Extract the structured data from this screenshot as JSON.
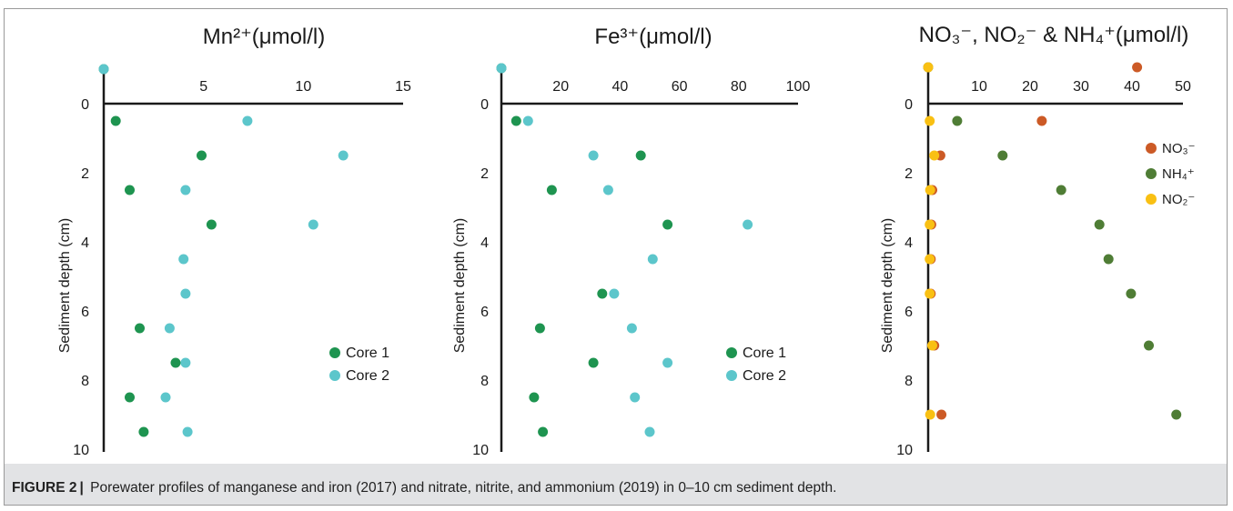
{
  "caption": {
    "label": "FIGURE 2",
    "separator": "|",
    "text": "Porewater profiles of manganese and iron (2017) and nitrate, nitrite, and ammonium (2019) in 0–10 cm sediment depth."
  },
  "chart_data": [
    {
      "type": "scatter",
      "title": "Mn²⁺(μmol/l)",
      "xlabel": "",
      "ylabel": "Sediment depth (cm)",
      "xlim": [
        0,
        15
      ],
      "ylim": [
        0,
        10
      ],
      "y_inverted": true,
      "x_ticks": [
        5,
        10,
        15
      ],
      "y_ticks": [
        0,
        2,
        4,
        6,
        8,
        10
      ],
      "legend_position": "lower-right",
      "grid": false,
      "series": [
        {
          "name": "Core 1",
          "color": "#1e9450",
          "x": [
            0.6,
            4.9,
            1.3,
            5.4,
            1.8,
            3.6,
            1.3,
            2.0
          ],
          "y": [
            0.5,
            1.5,
            2.5,
            3.5,
            6.5,
            7.5,
            8.5,
            9.5
          ]
        },
        {
          "name": "Core 2",
          "color": "#5cc6cb",
          "x": [
            7.2,
            12.0,
            4.1,
            10.5,
            4.0,
            4.1,
            3.3,
            4.1,
            3.1,
            4.2
          ],
          "y": [
            0.5,
            1.5,
            2.5,
            3.5,
            4.5,
            5.5,
            6.5,
            7.5,
            8.5,
            9.5
          ]
        }
      ]
    },
    {
      "type": "scatter",
      "title": "Fe³⁺(μmol/l)",
      "xlabel": "",
      "ylabel": "Sediment depth (cm)",
      "xlim": [
        0,
        100
      ],
      "ylim": [
        0,
        10
      ],
      "y_inverted": true,
      "x_ticks": [
        20,
        40,
        60,
        80,
        100
      ],
      "y_ticks": [
        0,
        2,
        4,
        6,
        8,
        10
      ],
      "legend_position": "lower-right",
      "grid": false,
      "series": [
        {
          "name": "Core 1",
          "color": "#1e9450",
          "x": [
            5,
            47,
            17,
            56,
            34,
            13,
            31,
            11,
            14
          ],
          "y": [
            0.5,
            1.5,
            2.5,
            3.5,
            5.5,
            6.5,
            7.5,
            8.5,
            9.5
          ]
        },
        {
          "name": "Core 2",
          "color": "#5cc6cb",
          "x": [
            9,
            31,
            36,
            83,
            51,
            38,
            44,
            56,
            45,
            50
          ],
          "y": [
            0.5,
            1.5,
            2.5,
            3.5,
            4.5,
            5.5,
            6.5,
            7.5,
            8.5,
            9.5
          ]
        }
      ]
    },
    {
      "type": "scatter",
      "title": "NO₃⁻, NO₂⁻ & NH₄⁺(μmol/l)",
      "xlabel": "",
      "ylabel": "Sediment depth (cm)",
      "xlim": [
        0,
        50
      ],
      "ylim": [
        0,
        10
      ],
      "y_inverted": true,
      "x_ticks": [
        10,
        20,
        30,
        40,
        50
      ],
      "y_ticks": [
        0,
        2,
        4,
        6,
        8,
        10
      ],
      "legend_position": "upper-right",
      "grid": false,
      "series": [
        {
          "name": "NO₃⁻",
          "color": "#cc5a26",
          "x": [
            22.3,
            2.4,
            0.8,
            0.6,
            0.5,
            0.5,
            1.2,
            2.6
          ],
          "y": [
            0.5,
            1.5,
            2.5,
            3.5,
            4.5,
            5.5,
            7.0,
            9.0
          ]
        },
        {
          "name": "NH₄⁺",
          "color": "#4f7d35",
          "x": [
            5.7,
            14.6,
            26.1,
            33.6,
            35.4,
            39.8,
            43.3,
            48.7
          ],
          "y": [
            0.5,
            1.5,
            2.5,
            3.5,
            4.5,
            5.5,
            7.0,
            9.0
          ]
        },
        {
          "name": "NO₂⁻",
          "color": "#f9c013",
          "x": [
            0.3,
            1.2,
            0.4,
            0.3,
            0.3,
            0.3,
            0.8,
            0.4
          ],
          "y": [
            0.5,
            1.5,
            2.5,
            3.5,
            4.5,
            5.5,
            7.0,
            9.0
          ]
        }
      ]
    }
  ]
}
